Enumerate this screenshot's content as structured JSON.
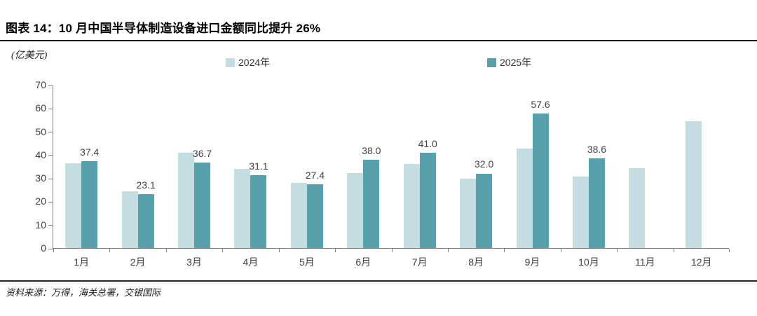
{
  "header": {
    "title": "图表 14：10 月中国半导体制造设备进口金额同比提升 26%"
  },
  "chart_data": {
    "type": "bar",
    "title": "10 月中国半导体制造设备进口金额同比提升 26%",
    "unit_label": "(亿美元)",
    "categories": [
      "1月",
      "2月",
      "3月",
      "4月",
      "5月",
      "6月",
      "7月",
      "8月",
      "9月",
      "10月",
      "11月",
      "12月"
    ],
    "series": [
      {
        "name": "2024年",
        "color": "#C3DDE1",
        "values": [
          36.5,
          24.2,
          41.0,
          34.1,
          27.8,
          32.1,
          36.2,
          29.7,
          42.6,
          30.6,
          34.4,
          54.5
        ]
      },
      {
        "name": "2025年",
        "color": "#57A0AC",
        "values": [
          37.4,
          23.1,
          36.7,
          31.1,
          27.4,
          38.0,
          41.0,
          32.0,
          57.6,
          38.6,
          null,
          null
        ],
        "data_labels": [
          "37.4",
          "23.1",
          "36.7",
          "31.1",
          "27.4",
          "38.0",
          "41.0",
          "32.0",
          "57.6",
          "38.6",
          null,
          null
        ]
      }
    ],
    "ylim": [
      0,
      70
    ],
    "yticks": [
      0,
      10,
      20,
      30,
      40,
      50,
      60,
      70
    ],
    "grid": false,
    "legend_position": "top"
  },
  "footer": {
    "source": "资料来源：万得，海关总署，交银国际"
  }
}
